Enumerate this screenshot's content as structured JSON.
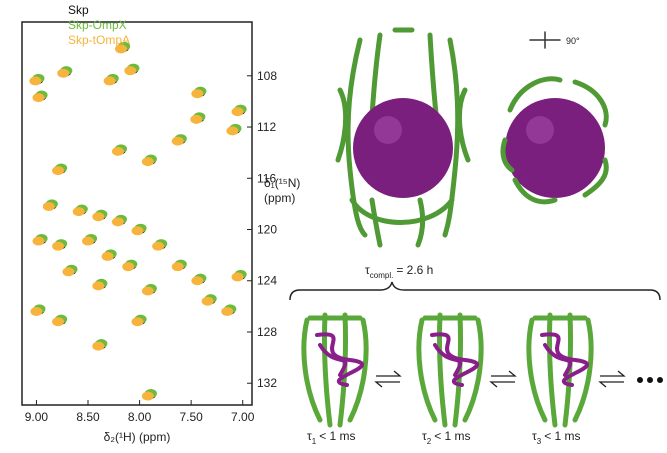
{
  "chart_data": {
    "type": "scatter",
    "xlabel": "δ₂(¹H) (ppm)",
    "ylabel": [
      "δ₁(¹⁵N)",
      "(ppm)"
    ],
    "xlim": [
      9.14,
      6.91
    ],
    "ylim": [
      103.8,
      133.7
    ],
    "xticks": [
      {
        "value": 9,
        "label": "9.00"
      },
      {
        "value": 8.5,
        "label": "8.50"
      },
      {
        "value": 8,
        "label": "8.00"
      },
      {
        "value": 7.5,
        "label": "7.50"
      },
      {
        "value": 7,
        "label": "7.00"
      }
    ],
    "yticks": [
      108,
      112,
      116,
      120,
      124,
      128,
      132
    ],
    "legend": "top-left",
    "series": [
      {
        "name": "Skp",
        "color": "#111111",
        "x": [
          8.16,
          8.07,
          8.99,
          8.72,
          8.96,
          8.27,
          7.42,
          7.03,
          7.08,
          7.61,
          7.43,
          7.9,
          8.19,
          8.77,
          8.86,
          8.57,
          8.38,
          8.19,
          8.0,
          8.48,
          8.77,
          8.96,
          8.29,
          8.09,
          7.8,
          7.61,
          8.67,
          8.38,
          7.9,
          7.42,
          7.03,
          8.98,
          8.77,
          7.32,
          7.13,
          8.38,
          8.0,
          7.9
        ],
        "values": [
          105.8,
          107.5,
          108.3,
          107.7,
          109.6,
          108.3,
          109.3,
          110.7,
          112.2,
          113.0,
          111.3,
          114.6,
          113.8,
          115.3,
          118.1,
          118.5,
          118.9,
          119.3,
          120.0,
          120.8,
          121.2,
          120.8,
          122.0,
          122.8,
          121.2,
          122.8,
          123.2,
          124.3,
          124.7,
          123.9,
          123.6,
          126.3,
          127.1,
          125.5,
          126.3,
          129.0,
          127.1,
          132.9
        ]
      },
      {
        "name": "Skp-OmpX",
        "color": "#6cbb3c",
        "x": [
          8.15,
          8.06,
          8.98,
          8.71,
          8.95,
          8.26,
          7.41,
          7.02,
          7.07,
          7.6,
          7.42,
          7.89,
          8.18,
          8.76,
          8.85,
          8.56,
          8.37,
          8.18,
          7.99,
          8.47,
          8.76,
          8.95,
          8.28,
          8.08,
          7.79,
          7.6,
          8.66,
          8.37,
          7.89,
          7.41,
          7.02,
          8.97,
          8.76,
          7.31,
          7.12,
          8.37,
          7.99,
          7.89
        ],
        "values": [
          105.7,
          107.4,
          108.2,
          107.6,
          109.5,
          108.2,
          109.2,
          110.6,
          112.1,
          112.9,
          111.2,
          114.5,
          113.7,
          115.2,
          118.0,
          118.4,
          118.8,
          119.2,
          119.9,
          120.7,
          121.1,
          120.7,
          121.9,
          122.7,
          121.1,
          122.7,
          123.1,
          124.2,
          124.6,
          123.8,
          123.5,
          126.2,
          127.0,
          125.4,
          126.2,
          128.9,
          127.0,
          132.8
        ]
      },
      {
        "name": "Skp-tOmpA",
        "color": "#f6b43c",
        "x": [
          8.18,
          8.09,
          9.01,
          8.74,
          8.98,
          8.29,
          7.44,
          7.05,
          7.1,
          7.63,
          7.45,
          7.92,
          8.21,
          8.79,
          8.88,
          8.59,
          8.4,
          8.21,
          8.02,
          8.5,
          8.79,
          8.98,
          8.31,
          8.11,
          7.82,
          7.63,
          8.69,
          8.4,
          7.92,
          7.44,
          7.05,
          9.0,
          8.79,
          7.34,
          7.15,
          8.4,
          8.02,
          7.92
        ],
        "values": [
          105.9,
          107.6,
          108.4,
          107.8,
          109.7,
          108.4,
          109.4,
          110.8,
          112.3,
          113.1,
          111.4,
          114.7,
          113.9,
          115.4,
          118.2,
          118.6,
          119.0,
          119.4,
          120.1,
          120.9,
          121.3,
          120.9,
          122.1,
          122.9,
          121.3,
          122.9,
          123.3,
          124.4,
          124.8,
          124.0,
          123.7,
          126.4,
          127.2,
          125.6,
          126.4,
          129.1,
          127.2,
          133.0
        ]
      }
    ]
  },
  "figure": {
    "rotation_label": "90°",
    "complex_time": {
      "symbol": "τ",
      "sub": "compl.",
      "rest": "= 2.6 h"
    },
    "state_times": [
      {
        "symbol": "τ",
        "sub": "1",
        "rest": "< 1 ms"
      },
      {
        "symbol": "τ",
        "sub": "2",
        "rest": "< 1 ms"
      },
      {
        "symbol": "τ",
        "sub": "3",
        "rest": "< 1 ms"
      }
    ]
  }
}
